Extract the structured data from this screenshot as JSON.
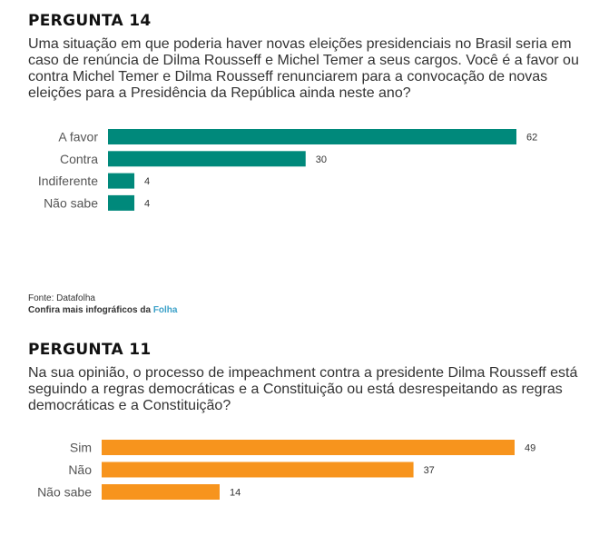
{
  "charts": [
    {
      "heading": "PERGUNTA 14",
      "question": "Uma situação em que poderia haver novas eleições presidenciais no Brasil seria em caso de renúncia de Dilma Rousseff e Michel Temer a seus cargos. Você é a favor ou contra Michel Temer e Dilma Rousseff renunciarem para a convocação de novas eleições para a Presidência da República ainda neste ano?",
      "color": "#00897b"
    },
    {
      "heading": "PERGUNTA 11",
      "question": "Na sua opinião, o processo de impeachment contra a presidente Dilma Rousseff está seguindo a regras democráticas e a Constituição ou está desrespeitando as regras democráticas e a Constituição?",
      "color": "#f7941d"
    }
  ],
  "source": {
    "line1": "Fonte: Datafolha",
    "line2_prefix": "Confira mais infográficos da ",
    "line2_link": "Folha"
  },
  "chart_data": [
    {
      "type": "bar",
      "orientation": "horizontal",
      "title": "PERGUNTA 14",
      "categories": [
        "A favor",
        "Contra",
        "Indiferente",
        "Não sabe"
      ],
      "values": [
        62,
        30,
        4,
        4
      ],
      "color": "#00897b",
      "grid": false
    },
    {
      "type": "bar",
      "orientation": "horizontal",
      "title": "PERGUNTA 11",
      "categories": [
        "Sim",
        "Não",
        "Não sabe"
      ],
      "values": [
        49,
        37,
        14
      ],
      "color": "#f7941d",
      "grid": false
    }
  ]
}
